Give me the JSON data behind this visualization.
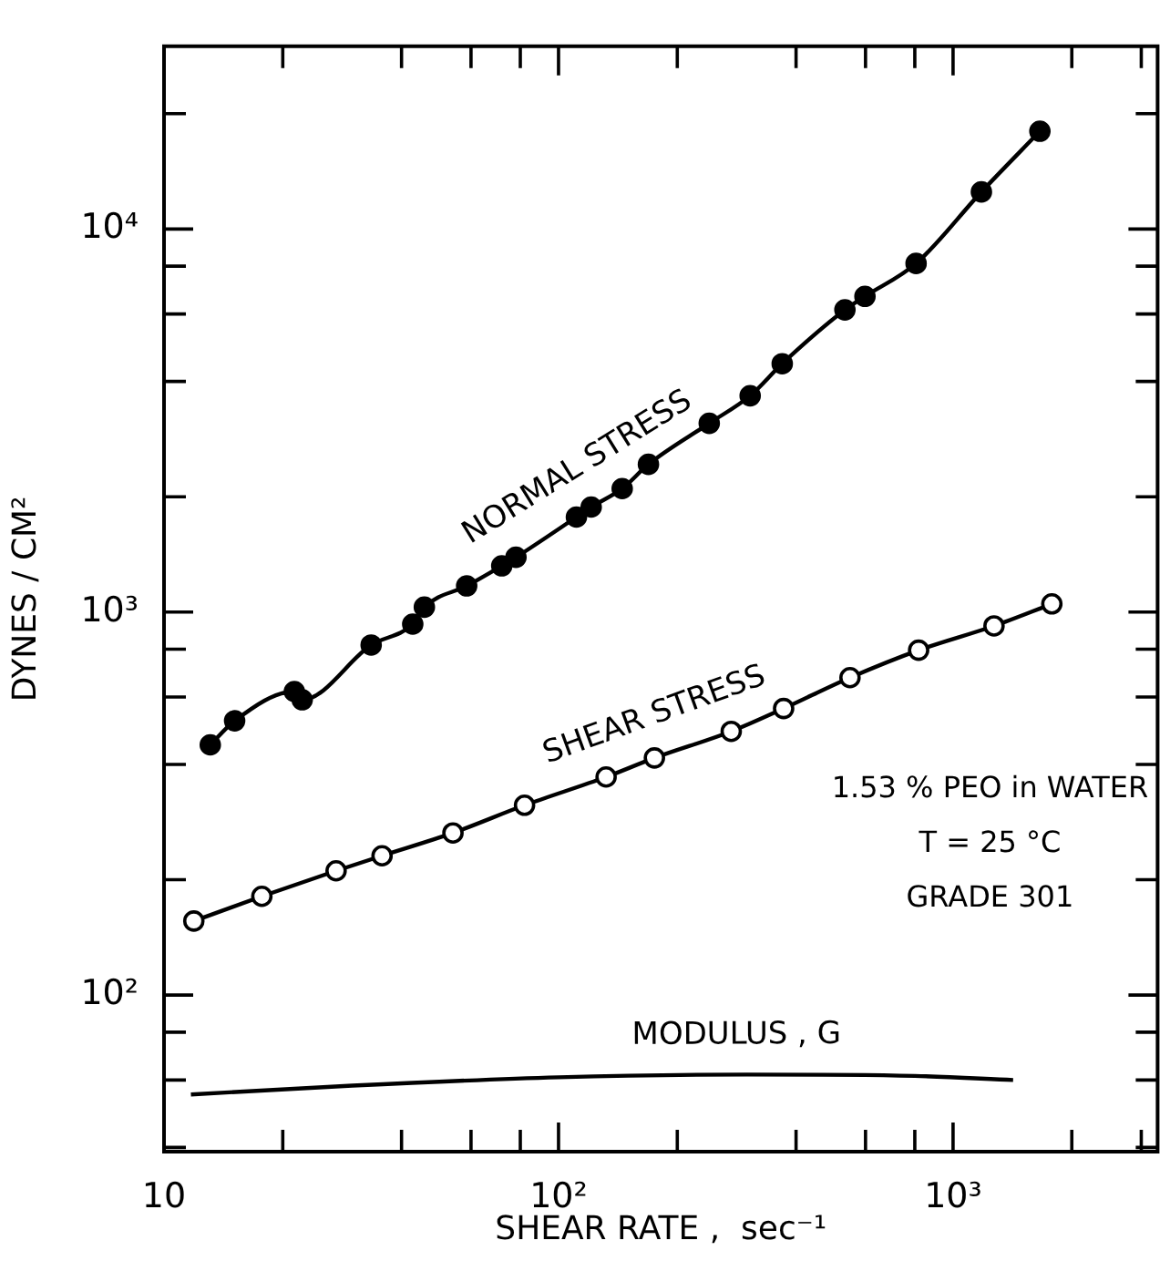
{
  "chart_data": {
    "type": "line",
    "xlabel": "SHEAR RATE ,  sec⁻¹",
    "ylabel": "DYNES / CM²",
    "log": "xy",
    "xlim": [
      10,
      3300
    ],
    "ylim": [
      39,
      30000
    ],
    "xticks": [
      {
        "value": 10,
        "label": "10"
      },
      {
        "value": 20,
        "label": null
      },
      {
        "value": 40,
        "label": null
      },
      {
        "value": 60,
        "label": null
      },
      {
        "value": 80,
        "label": null
      },
      {
        "value": 100,
        "label": "10²"
      },
      {
        "value": 200,
        "label": null
      },
      {
        "value": 400,
        "label": null
      },
      {
        "value": 600,
        "label": null
      },
      {
        "value": 800,
        "label": null
      },
      {
        "value": 1000,
        "label": "10³"
      },
      {
        "value": 2000,
        "label": null
      },
      {
        "value": 3000,
        "label": null
      }
    ],
    "yticks": [
      {
        "value": 40,
        "label": null
      },
      {
        "value": 60,
        "label": null
      },
      {
        "value": 80,
        "label": null
      },
      {
        "value": 100,
        "label": "10²"
      },
      {
        "value": 200,
        "label": null
      },
      {
        "value": 400,
        "label": null
      },
      {
        "value": 600,
        "label": null
      },
      {
        "value": 800,
        "label": null
      },
      {
        "value": 1000,
        "label": "10³"
      },
      {
        "value": 2000,
        "label": null
      },
      {
        "value": 4000,
        "label": null
      },
      {
        "value": 6000,
        "label": null
      },
      {
        "value": 8000,
        "label": null
      },
      {
        "value": 10000,
        "label": "10⁴"
      },
      {
        "value": 20000,
        "label": null
      }
    ],
    "series": [
      {
        "name": "NORMAL STRESS",
        "color": "#000000",
        "marker": "circle",
        "x": [
          13.1,
          15.1,
          21.4,
          22.4,
          33.5,
          42.7,
          45.7,
          58.5,
          71.8,
          78,
          111,
          121,
          145,
          169,
          241,
          306,
          369,
          532,
          598,
          806,
          1180,
          1660
        ],
        "values": [
          450,
          520,
          620,
          590,
          820,
          930,
          1030,
          1170,
          1320,
          1390,
          1770,
          1880,
          2100,
          2430,
          3110,
          3670,
          4450,
          6150,
          6670,
          8130,
          12500,
          18000
        ]
      },
      {
        "name": "SHEAR STRESS",
        "color": "#000000",
        "marker": "circle-open",
        "x": [
          11.9,
          17.7,
          27.3,
          35.7,
          54,
          82,
          132,
          175,
          274,
          372,
          548,
          818,
          1270,
          1780
        ],
        "values": [
          156,
          181,
          211,
          231,
          265,
          313,
          371,
          416,
          488,
          560,
          674,
          795,
          920,
          1050
        ]
      },
      {
        "name": "MODULUS , G",
        "color": "#000000",
        "marker": "none",
        "x": [
          11.7,
          30,
          100,
          300,
          800,
          1420
        ],
        "values": [
          55,
          58,
          61,
          62,
          61.5,
          60
        ]
      }
    ],
    "annotations": [
      "1.53 % PEO in WATER",
      "T = 25 °C",
      "GRADE 301"
    ]
  }
}
